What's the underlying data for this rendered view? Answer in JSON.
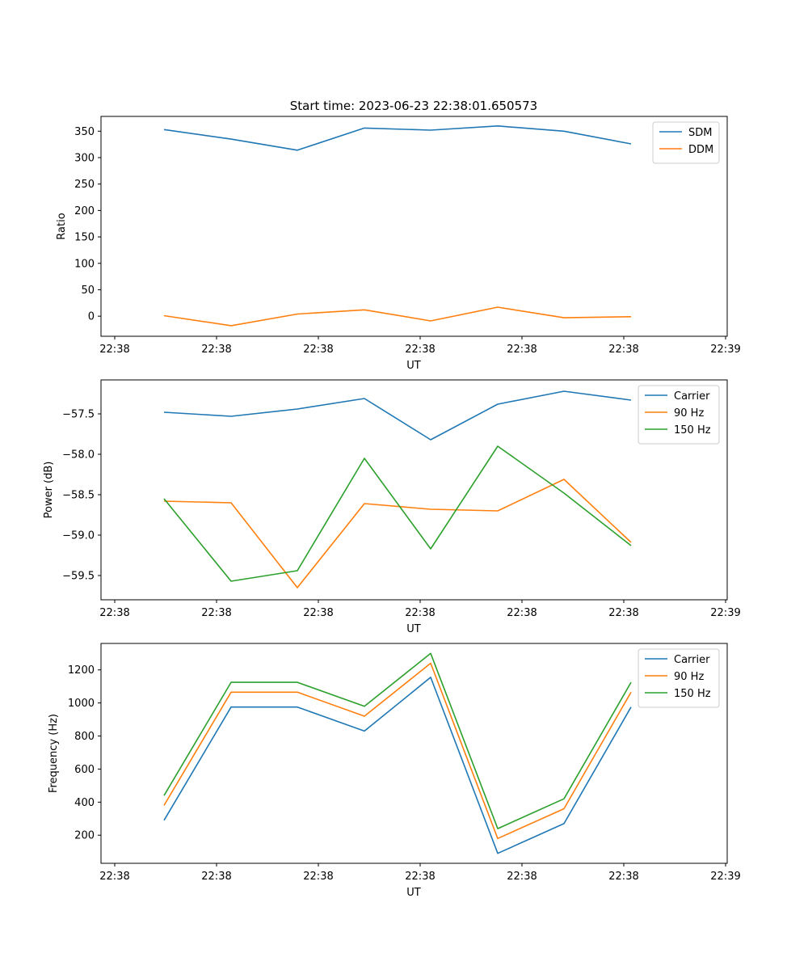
{
  "title": "Start time: 2023-06-23 22:38:01.650573",
  "chart_data": [
    {
      "type": "line",
      "xlabel": "UT",
      "ylabel": "Ratio",
      "x_tick_labels": [
        "22:38",
        "22:38",
        "22:38",
        "22:38",
        "22:38",
        "22:38",
        "22:38"
      ],
      "x_tick_end_label": "22:39",
      "ylim": [
        -38,
        378
      ],
      "yticks": [
        0,
        50,
        100,
        150,
        200,
        250,
        300,
        350
      ],
      "legend_position": "top-right",
      "grid": false,
      "series": [
        {
          "name": "SDM",
          "color": "#1f77b4",
          "values": [
            353,
            335,
            314,
            356,
            352,
            360,
            350,
            326
          ]
        },
        {
          "name": "DDM",
          "color": "#ff7f0e",
          "values": [
            1,
            -18,
            4,
            12,
            -9,
            17,
            -3,
            -1
          ]
        }
      ]
    },
    {
      "type": "line",
      "xlabel": "UT",
      "ylabel": "Power (dB)",
      "x_tick_labels": [
        "22:38",
        "22:38",
        "22:38",
        "22:38",
        "22:38",
        "22:38",
        "22:38"
      ],
      "x_tick_end_label": "22:39",
      "ylim": [
        -59.8,
        -57.08
      ],
      "yticks": [
        -59.5,
        -59.0,
        -58.5,
        -58.0,
        -57.5
      ],
      "ytick_labels": [
        "−59.5",
        "−59.0",
        "−58.5",
        "−58.0",
        "−57.5"
      ],
      "legend_position": "top-right",
      "grid": false,
      "series": [
        {
          "name": "Carrier",
          "color": "#1f77b4",
          "values": [
            -57.48,
            -57.53,
            -57.44,
            -57.31,
            -57.82,
            -57.38,
            -57.22,
            -57.33
          ]
        },
        {
          "name": "90 Hz",
          "color": "#ff7f0e",
          "values": [
            -58.58,
            -58.6,
            -59.65,
            -58.61,
            -58.68,
            -58.7,
            -58.31,
            -59.09
          ]
        },
        {
          "name": "150 Hz",
          "color": "#2ca02c",
          "values": [
            -58.55,
            -59.57,
            -59.44,
            -58.05,
            -59.17,
            -57.9,
            -58.48,
            -59.13
          ]
        }
      ]
    },
    {
      "type": "line",
      "xlabel": "UT",
      "ylabel": "Frequency (Hz)",
      "x_tick_labels": [
        "22:38",
        "22:38",
        "22:38",
        "22:38",
        "22:38",
        "22:38",
        "22:38"
      ],
      "x_tick_end_label": "22:39",
      "ylim": [
        30,
        1360
      ],
      "yticks": [
        200,
        400,
        600,
        800,
        1000,
        1200
      ],
      "legend_position": "top-right",
      "grid": false,
      "series": [
        {
          "name": "Carrier",
          "color": "#1f77b4",
          "values": [
            290,
            975,
            975,
            830,
            1155,
            90,
            270,
            975
          ]
        },
        {
          "name": "90 Hz",
          "color": "#ff7f0e",
          "values": [
            380,
            1065,
            1065,
            920,
            1240,
            180,
            360,
            1065
          ]
        },
        {
          "name": "150 Hz",
          "color": "#2ca02c",
          "values": [
            440,
            1125,
            1125,
            980,
            1300,
            240,
            420,
            1125
          ]
        }
      ]
    }
  ]
}
